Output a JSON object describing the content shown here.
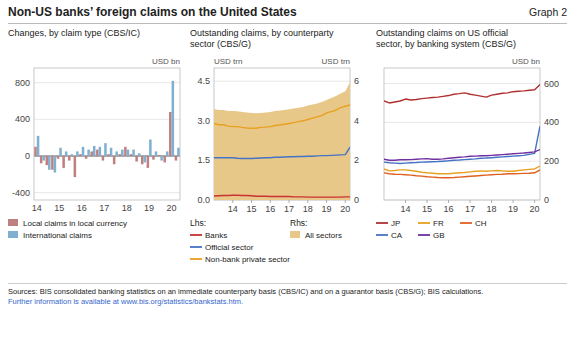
{
  "title": "Non-US banks’ foreign claims on the United States",
  "annotations": [
    "Graph 2",
    "Sources: BIS consolidated banking statistics on an immediate counterparty basis (CBS/IC) and on a guarantor basis (CBS/G); BIS calculations.",
    "Further information is available at www.bis.org/statistics/bankstats.htm."
  ],
  "chart_data": [
    {
      "type": "bar",
      "title": "Changes, by claim type (CBS/IC)",
      "y_label": "USD bn",
      "categories": [
        "14",
        null,
        null,
        null,
        "15",
        null,
        null,
        null,
        "16",
        null,
        null,
        null,
        "17",
        null,
        null,
        null,
        "18",
        null,
        null,
        null,
        "19",
        null,
        null,
        null,
        "20",
        null
      ],
      "series": [
        {
          "name": "Local claims in local currency",
          "color": "#c08080",
          "values": [
            100,
            -80,
            -100,
            -150,
            -30,
            -130,
            -50,
            -230,
            20,
            -30,
            50,
            70,
            -50,
            20,
            -90,
            20,
            100,
            20,
            -60,
            -90,
            -130,
            -40,
            10,
            -70,
            480,
            -50
          ]
        },
        {
          "name": "International claims",
          "color": "#80b0d0",
          "values": [
            220,
            -50,
            -150,
            -180,
            90,
            50,
            20,
            50,
            100,
            70,
            110,
            100,
            140,
            90,
            50,
            70,
            70,
            70,
            30,
            -70,
            180,
            50,
            -50,
            50,
            820,
            90
          ]
        }
      ],
      "ylim": [
        -480,
        960
      ],
      "yticks": [
        -400,
        0,
        400,
        800
      ],
      "grid": true,
      "legend": "bottom"
    },
    {
      "type": "line",
      "title": "Outstanding claims, by counterparty\nsector (CBS/G)",
      "y_label": "USD trn",
      "y2_label": "USD trn",
      "annotations": [
        "Lhs:",
        "Rhs:"
      ],
      "x": [
        2013.0,
        2013.25,
        2013.5,
        2013.75,
        2014.0,
        2014.25,
        2014.5,
        2014.75,
        2015.0,
        2015.25,
        2015.5,
        2015.75,
        2016.0,
        2016.25,
        2016.5,
        2016.75,
        2017.0,
        2017.25,
        2017.5,
        2017.75,
        2018.0,
        2018.25,
        2018.5,
        2018.75,
        2019.0,
        2019.25,
        2019.5,
        2019.75,
        2020.0,
        2020.25
      ],
      "xlim": [
        2013.0,
        2020.25
      ],
      "xticks": [
        {
          "value": 2014,
          "label": "14"
        },
        {
          "value": 2015,
          "label": "15"
        },
        {
          "value": 2016,
          "label": "16"
        },
        {
          "value": 2017,
          "label": "17"
        },
        {
          "value": 2018,
          "label": "18"
        },
        {
          "value": 2019,
          "label": "19"
        },
        {
          "value": 2020,
          "label": "20"
        }
      ],
      "ylim": [
        0,
        5.0
      ],
      "yticks": [
        {
          "value": 0.0,
          "label": "0.0"
        },
        1.5,
        {
          "value": 3.0,
          "label": "3.0"
        },
        4.5
      ],
      "y2lim": [
        0,
        6.67
      ],
      "y2ticks": [
        0,
        2,
        4,
        6
      ],
      "series": [
        {
          "name": "All sectors",
          "type": "area",
          "axis": "y2",
          "color": "#e8c888",
          "values": [
            4.6,
            4.55,
            4.55,
            4.5,
            4.5,
            4.48,
            4.45,
            4.42,
            4.4,
            4.38,
            4.4,
            4.42,
            4.45,
            4.5,
            4.52,
            4.55,
            4.58,
            4.62,
            4.66,
            4.7,
            4.78,
            4.82,
            4.88,
            4.95,
            5.05,
            5.15,
            5.25,
            5.38,
            5.5,
            5.95
          ]
        },
        {
          "name": "Banks",
          "type": "line",
          "color": "#c83232",
          "values": [
            0.15,
            0.16,
            0.17,
            0.17,
            0.18,
            0.18,
            0.17,
            0.17,
            0.16,
            0.14,
            0.14,
            0.14,
            0.13,
            0.13,
            0.13,
            0.13,
            0.13,
            0.12,
            0.12,
            0.12,
            0.11,
            0.11,
            0.11,
            0.11,
            0.11,
            0.11,
            0.11,
            0.11,
            0.12,
            0.12
          ]
        },
        {
          "name": "Official sector",
          "type": "line",
          "color": "#4472c4",
          "values": [
            1.6,
            1.6,
            1.6,
            1.6,
            1.6,
            1.58,
            1.57,
            1.57,
            1.57,
            1.58,
            1.59,
            1.6,
            1.6,
            1.62,
            1.62,
            1.63,
            1.64,
            1.64,
            1.65,
            1.65,
            1.66,
            1.66,
            1.67,
            1.68,
            1.68,
            1.69,
            1.7,
            1.71,
            1.72,
            2.0
          ]
        },
        {
          "name": "Non-bank private sector",
          "type": "line",
          "color": "#e8a020",
          "values": [
            2.9,
            2.85,
            2.85,
            2.8,
            2.78,
            2.78,
            2.75,
            2.73,
            2.72,
            2.72,
            2.75,
            2.76,
            2.78,
            2.82,
            2.84,
            2.87,
            2.9,
            2.93,
            2.97,
            3.0,
            3.05,
            3.1,
            3.15,
            3.2,
            3.3,
            3.35,
            3.4,
            3.5,
            3.55,
            3.6
          ]
        }
      ],
      "grid": true,
      "legend": "bottom"
    },
    {
      "type": "line",
      "title": "Outstanding claims on US official\nsector, by banking system (CBS/G)",
      "y_label": "USD bn",
      "x": [
        2013.0,
        2013.25,
        2013.5,
        2013.75,
        2014.0,
        2014.25,
        2014.5,
        2014.75,
        2015.0,
        2015.25,
        2015.5,
        2015.75,
        2016.0,
        2016.25,
        2016.5,
        2016.75,
        2017.0,
        2017.25,
        2017.5,
        2017.75,
        2018.0,
        2018.25,
        2018.5,
        2018.75,
        2019.0,
        2019.25,
        2019.5,
        2019.75,
        2020.0,
        2020.25
      ],
      "xlim": [
        2013.0,
        2020.25
      ],
      "xticks": [
        {
          "value": 2014,
          "label": "14"
        },
        {
          "value": 2015,
          "label": "15"
        },
        {
          "value": 2016,
          "label": "16"
        },
        {
          "value": 2017,
          "label": "17"
        },
        {
          "value": 2018,
          "label": "18"
        },
        {
          "value": 2019,
          "label": "19"
        },
        {
          "value": 2020,
          "label": "20"
        }
      ],
      "ylim": [
        0,
        680
      ],
      "yticks": [
        0,
        200,
        400,
        600
      ],
      "series": [
        {
          "name": "JP",
          "color": "#b03030",
          "values": [
            510,
            500,
            505,
            510,
            520,
            515,
            518,
            522,
            525,
            528,
            530,
            534,
            538,
            545,
            548,
            552,
            545,
            540,
            535,
            530,
            540,
            545,
            550,
            552,
            558,
            560,
            562,
            565,
            568,
            595
          ]
        },
        {
          "name": "FR",
          "color": "#e8a020",
          "values": [
            160,
            150,
            152,
            155,
            155,
            152,
            148,
            143,
            140,
            138,
            135,
            135,
            135,
            138,
            140,
            142,
            145,
            148,
            150,
            148,
            150,
            152,
            150,
            148,
            148,
            152,
            155,
            158,
            160,
            175
          ]
        },
        {
          "name": "CH",
          "color": "#e06020",
          "values": [
            140,
            135,
            133,
            132,
            130,
            128,
            125,
            123,
            120,
            118,
            116,
            115,
            115,
            116,
            118,
            120,
            122,
            124,
            126,
            128,
            130,
            132,
            133,
            135,
            135,
            136,
            137,
            138,
            140,
            155
          ]
        },
        {
          "name": "CA",
          "color": "#4472c4",
          "values": [
            195,
            192,
            190,
            188,
            190,
            192,
            193,
            195,
            196,
            197,
            198,
            200,
            202,
            205,
            206,
            208,
            210,
            212,
            215,
            216,
            218,
            220,
            222,
            224,
            226,
            228,
            230,
            235,
            240,
            380
          ]
        },
        {
          "name": "GB",
          "color": "#7030a0",
          "values": [
            210,
            205,
            205,
            207,
            207,
            208,
            210,
            212,
            213,
            210,
            210,
            212,
            215,
            218,
            220,
            222,
            225,
            226,
            228,
            228,
            230,
            232,
            234,
            236,
            238,
            240,
            242,
            245,
            248,
            260
          ]
        }
      ],
      "grid": true,
      "legend": "bottom"
    }
  ]
}
